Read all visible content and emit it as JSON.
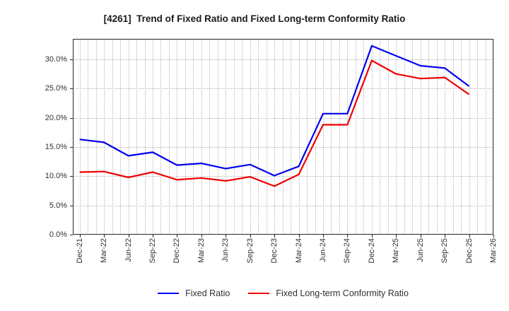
{
  "chart_data": {
    "type": "line",
    "title": "[4261]  Trend of Fixed Ratio and Fixed Long-term Conformity Ratio",
    "categories": [
      "Dec-21",
      "Mar-22",
      "Jun-22",
      "Sep-22",
      "Dec-22",
      "Mar-23",
      "Jun-23",
      "Sep-23",
      "Dec-23",
      "Mar-24",
      "Jun-24",
      "Sep-24",
      "Dec-24",
      "Mar-25",
      "Jun-25",
      "Sep-25",
      "Dec-25",
      "Mar-26"
    ],
    "x_months_span": 51,
    "series": [
      {
        "name": "Fixed Ratio",
        "color": "#0000ee",
        "values": [
          16.3,
          15.8,
          13.5,
          14.1,
          11.9,
          12.2,
          11.3,
          12.0,
          10.1,
          11.7,
          20.7,
          20.7,
          32.3,
          30.6,
          28.9,
          28.5,
          25.4
        ]
      },
      {
        "name": "Fixed Long-term Conformity Ratio",
        "color": "#f00000",
        "values": [
          10.7,
          10.8,
          9.8,
          10.7,
          9.4,
          9.7,
          9.2,
          9.9,
          8.3,
          10.3,
          18.8,
          18.8,
          29.8,
          27.5,
          26.7,
          26.9,
          24.0
        ]
      }
    ],
    "xlabel": "",
    "ylabel": "",
    "yticks": [
      {
        "value": 0,
        "label": "0.0%"
      },
      {
        "value": 5,
        "label": "5.0%"
      },
      {
        "value": 10,
        "label": "10.0%"
      },
      {
        "value": 15,
        "label": "15.0%"
      },
      {
        "value": 20,
        "label": "20.0%"
      },
      {
        "value": 25,
        "label": "25.0%"
      },
      {
        "value": 30,
        "label": "30.0%"
      }
    ],
    "ylim": [
      0,
      33.5
    ],
    "grid": {
      "horizontal": "major-dotted",
      "vertical": "monthly-dotted"
    },
    "legend_position": "bottom-center",
    "axis_color": "#262626",
    "grid_color": "#b3b3b3"
  }
}
